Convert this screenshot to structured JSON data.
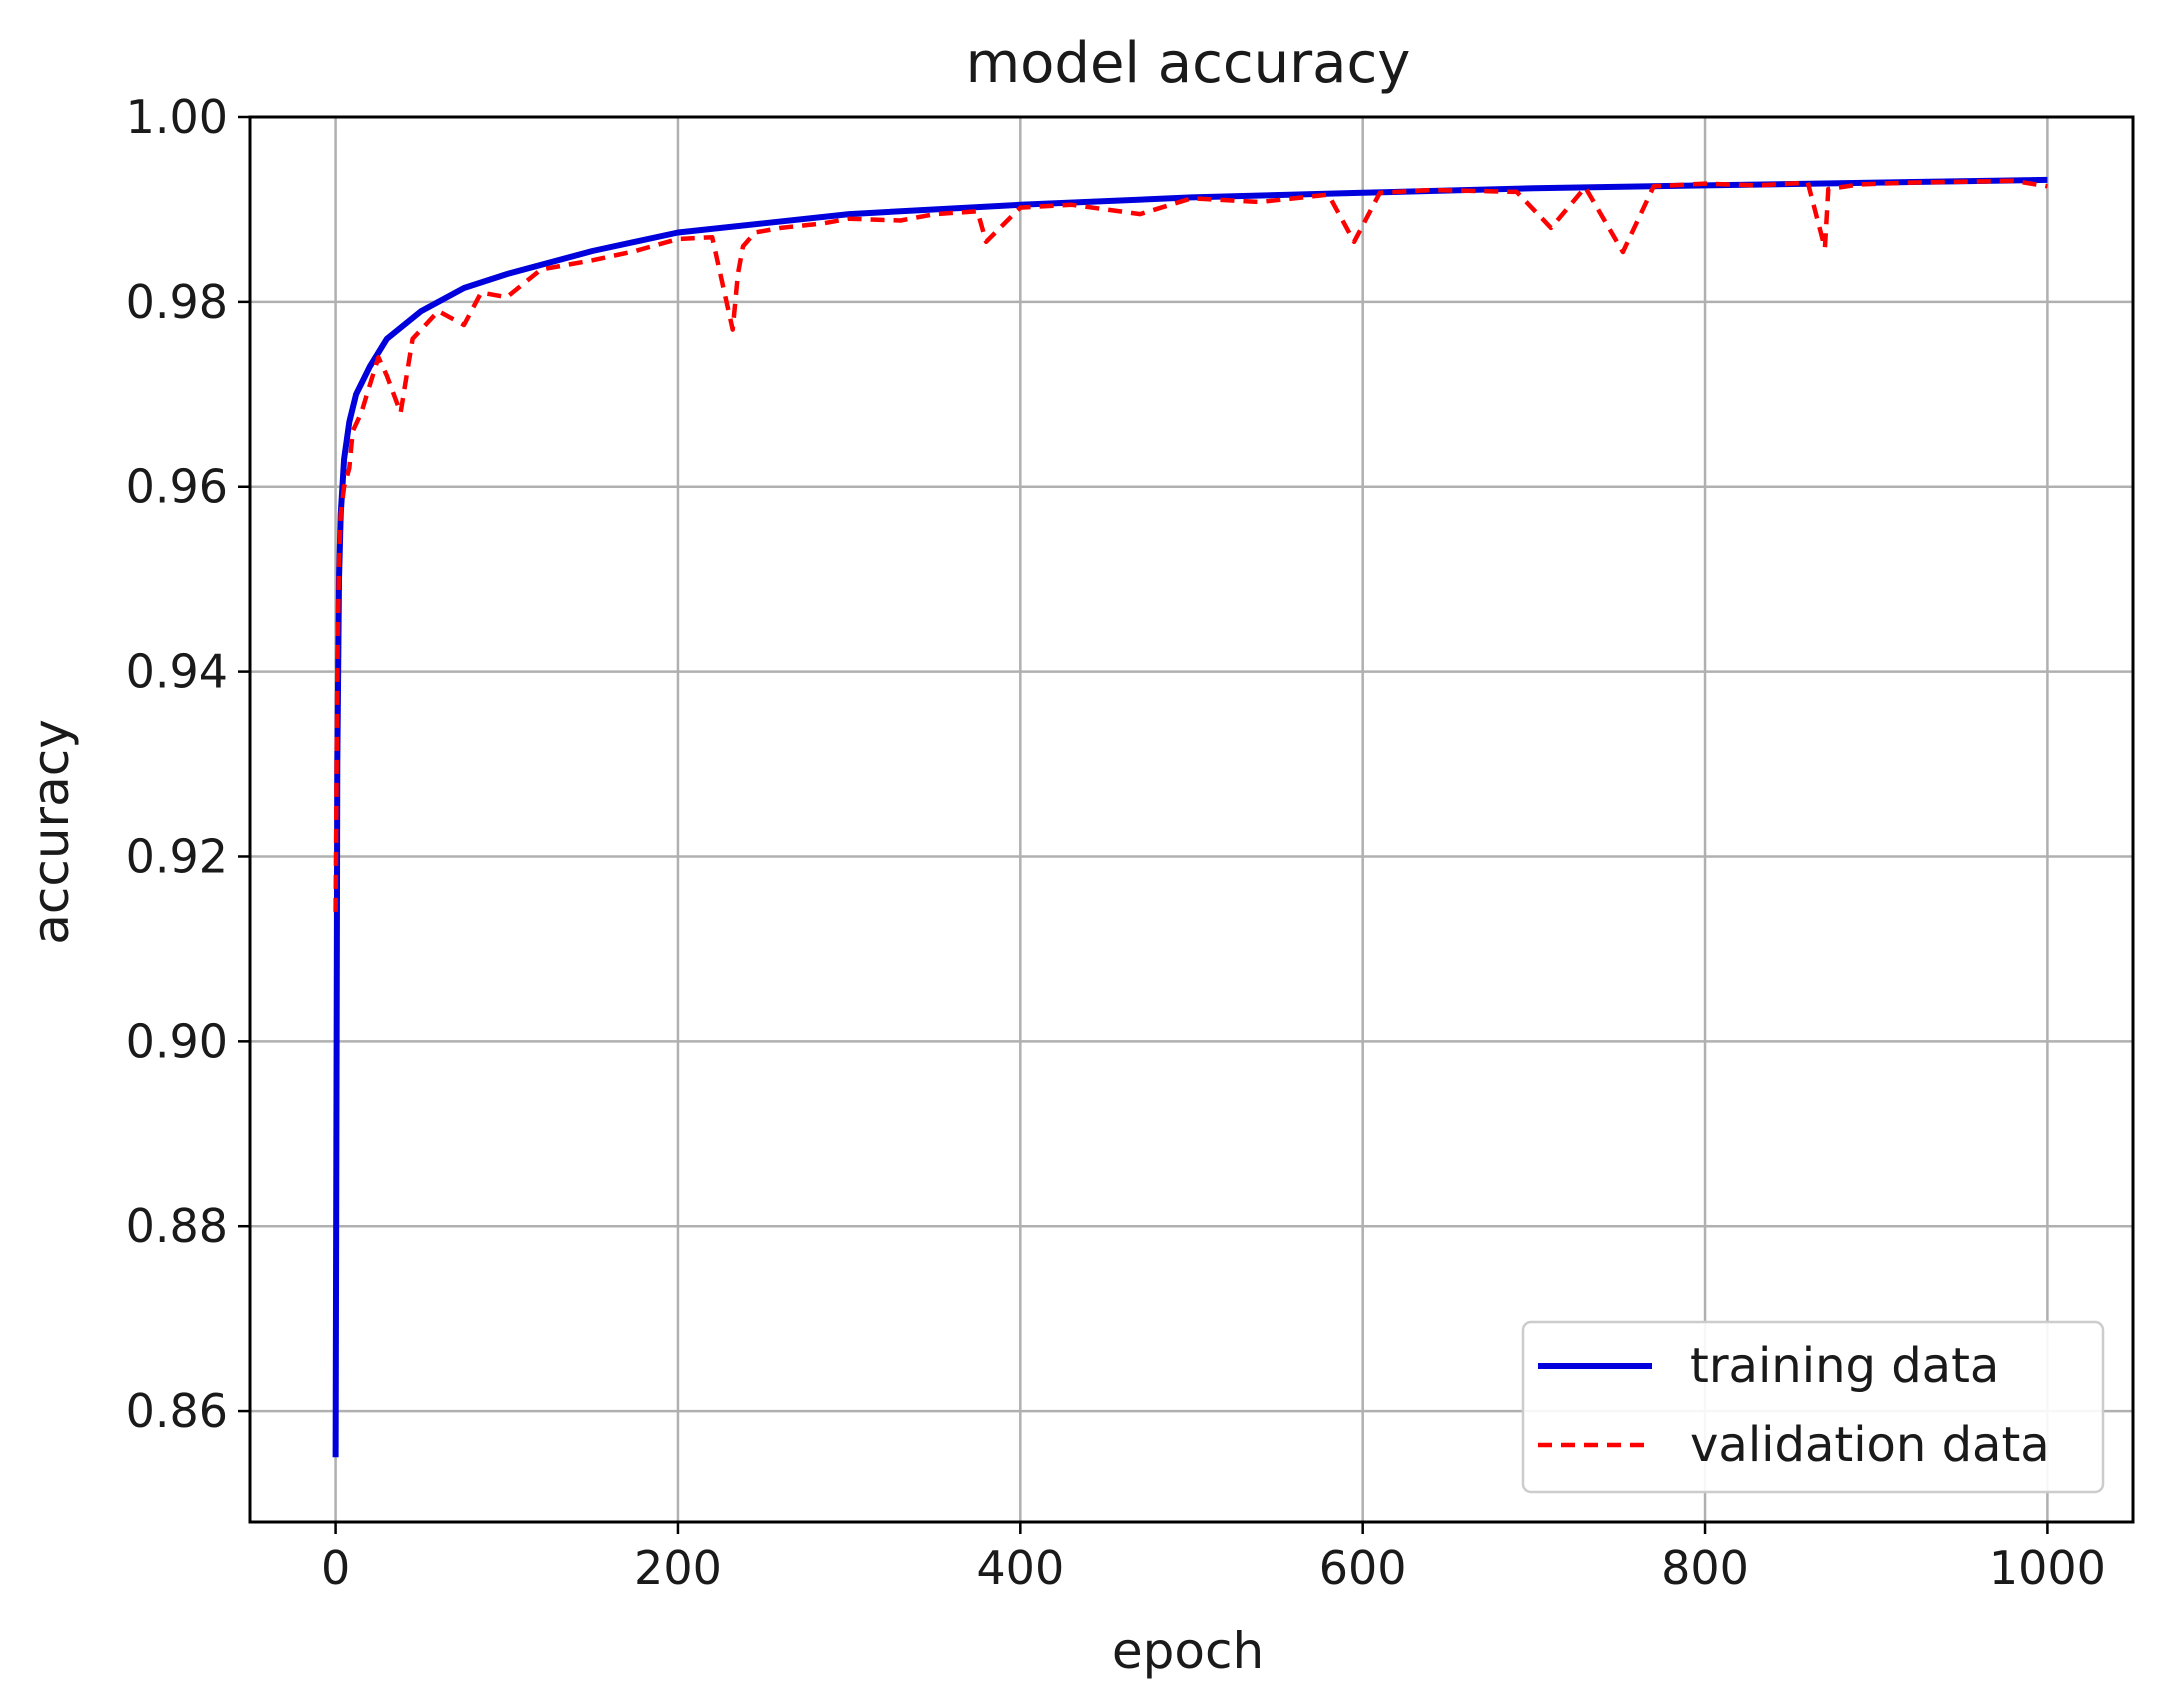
{
  "chart_data": {
    "type": "line",
    "title": "model accuracy",
    "xlabel": "epoch",
    "ylabel": "accuracy",
    "xlim": [
      -50,
      1050
    ],
    "ylim": [
      0.848,
      1.0
    ],
    "xticks": [
      0,
      200,
      400,
      600,
      800,
      1000
    ],
    "xtick_labels": [
      "0",
      "200",
      "400",
      "600",
      "800",
      "1000"
    ],
    "yticks": [
      0.86,
      0.88,
      0.9,
      0.92,
      0.94,
      0.96,
      0.98,
      1.0
    ],
    "ytick_labels": [
      "0.86",
      "0.88",
      "0.90",
      "0.92",
      "0.94",
      "0.96",
      "0.98",
      "1.00"
    ],
    "grid": true,
    "legend_position": "lower-right",
    "series": [
      {
        "name": "training data",
        "color": "#0000dd",
        "style": "solid",
        "x": [
          0,
          1,
          2,
          3,
          5,
          8,
          12,
          20,
          30,
          50,
          75,
          100,
          150,
          200,
          250,
          300,
          400,
          500,
          600,
          700,
          800,
          900,
          1000
        ],
        "y": [
          0.855,
          0.93,
          0.95,
          0.957,
          0.963,
          0.967,
          0.97,
          0.973,
          0.976,
          0.979,
          0.9815,
          0.983,
          0.9855,
          0.9875,
          0.9885,
          0.9895,
          0.9905,
          0.9913,
          0.9918,
          0.9923,
          0.9926,
          0.9929,
          0.9932
        ]
      },
      {
        "name": "validation data",
        "color": "#ff0000",
        "style": "dashed",
        "x": [
          0,
          1,
          2,
          3,
          5,
          8,
          10,
          15,
          20,
          25,
          30,
          38,
          45,
          60,
          75,
          85,
          100,
          120,
          150,
          175,
          200,
          220,
          232,
          235,
          238,
          245,
          260,
          285,
          300,
          330,
          350,
          375,
          380,
          400,
          430,
          470,
          500,
          540,
          580,
          595,
          610,
          640,
          690,
          710,
          730,
          752,
          770,
          800,
          830,
          860,
          870,
          872,
          890,
          920,
          950,
          980,
          1000
        ],
        "y": [
          0.914,
          0.94,
          0.952,
          0.957,
          0.96,
          0.962,
          0.966,
          0.968,
          0.971,
          0.974,
          0.972,
          0.968,
          0.976,
          0.979,
          0.9775,
          0.981,
          0.9805,
          0.9835,
          0.9845,
          0.9855,
          0.9868,
          0.987,
          0.977,
          0.983,
          0.986,
          0.9875,
          0.988,
          0.9885,
          0.989,
          0.9888,
          0.9895,
          0.9898,
          0.9865,
          0.9902,
          0.9905,
          0.9895,
          0.9912,
          0.9908,
          0.9916,
          0.9865,
          0.9918,
          0.9921,
          0.9919,
          0.988,
          0.9924,
          0.9854,
          0.9925,
          0.9928,
          0.9926,
          0.9929,
          0.9858,
          0.9922,
          0.9927,
          0.9929,
          0.993,
          0.9931,
          0.9925
        ]
      }
    ]
  }
}
